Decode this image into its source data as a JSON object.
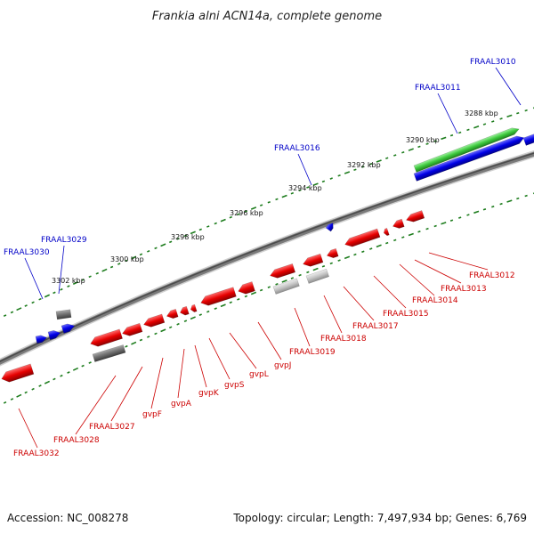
{
  "title": "Frankia alni ACN14a, complete genome",
  "footer": {
    "accession": "Accession: NC_008278",
    "summary": "Topology: circular; Length: 7,497,934 bp; Genes: 6,769"
  },
  "colors": {
    "backbone": "#7a7a7a",
    "tick": "#1e7d1e",
    "forward_label": "#0000c8",
    "reverse_label": "#cc0000",
    "red_gene": "#e60000",
    "blue_gene": "#0000e6",
    "gray_gene": "#6e6e6e",
    "light_gene": "#bdbdbd",
    "green_gene": "#3cc83c"
  },
  "ticks": [
    {
      "label": "3288 kbp"
    },
    {
      "label": "3290 kbp"
    },
    {
      "label": "3292 kbp"
    },
    {
      "label": "3294 kbp"
    },
    {
      "label": "3296 kbp"
    },
    {
      "label": "3298 kbp"
    },
    {
      "label": "3300 kbp"
    },
    {
      "label": "3302 kbp"
    }
  ],
  "forward_labels": [
    {
      "text": "FRAAL3010"
    },
    {
      "text": "FRAAL3011"
    },
    {
      "text": "FRAAL3016"
    },
    {
      "text": "FRAAL3029"
    },
    {
      "text": "FRAAL3030"
    }
  ],
  "reverse_labels": [
    {
      "text": "FRAAL3012"
    },
    {
      "text": "FRAAL3013"
    },
    {
      "text": "FRAAL3014"
    },
    {
      "text": "FRAAL3015"
    },
    {
      "text": "FRAAL3017"
    },
    {
      "text": "FRAAL3018"
    },
    {
      "text": "FRAAL3019"
    },
    {
      "text": "gvpJ"
    },
    {
      "text": "gvpL"
    },
    {
      "text": "gvpS"
    },
    {
      "text": "gvpK"
    },
    {
      "text": "gvpA"
    },
    {
      "text": "gvpF"
    },
    {
      "text": "FRAAL3027"
    },
    {
      "text": "FRAAL3028"
    },
    {
      "text": "FRAAL3032"
    }
  ]
}
